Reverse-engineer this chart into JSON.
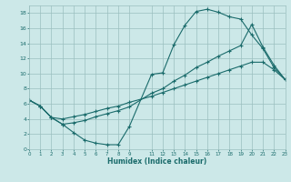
{
  "xlabel": "Humidex (Indice chaleur)",
  "bg_color": "#cce8e8",
  "grid_color": "#9bbfbf",
  "line_color": "#1a6b6b",
  "xlim": [
    0,
    23
  ],
  "ylim": [
    0,
    19
  ],
  "xticks": [
    0,
    1,
    2,
    3,
    4,
    5,
    6,
    7,
    8,
    9,
    11,
    12,
    13,
    14,
    15,
    16,
    17,
    18,
    19,
    20,
    21,
    22,
    23
  ],
  "yticks": [
    0,
    2,
    4,
    6,
    8,
    10,
    12,
    14,
    16,
    18
  ],
  "curve1_x": [
    0,
    1,
    2,
    3,
    4,
    5,
    6,
    7,
    8,
    9,
    11,
    12,
    13,
    14,
    15,
    16,
    17,
    18,
    19,
    20,
    21,
    22,
    23
  ],
  "curve1_y": [
    6.5,
    5.7,
    4.2,
    3.3,
    2.2,
    1.2,
    0.8,
    0.6,
    0.6,
    3.0,
    9.9,
    10.1,
    13.8,
    16.4,
    18.2,
    18.5,
    18.1,
    17.5,
    17.2,
    15.1,
    13.3,
    10.8,
    9.2
  ],
  "curve2_x": [
    0,
    1,
    2,
    3,
    4,
    5,
    6,
    7,
    8,
    9,
    11,
    12,
    13,
    14,
    15,
    16,
    17,
    18,
    19,
    20,
    21,
    22,
    23
  ],
  "curve2_y": [
    6.5,
    5.7,
    4.2,
    3.3,
    3.5,
    3.8,
    4.3,
    4.7,
    5.1,
    5.6,
    7.4,
    8.0,
    9.0,
    9.8,
    10.8,
    11.5,
    12.3,
    13.0,
    13.7,
    16.5,
    13.5,
    11.1,
    9.2
  ],
  "curve3_x": [
    0,
    1,
    2,
    3,
    4,
    5,
    6,
    7,
    8,
    9,
    11,
    12,
    13,
    14,
    15,
    16,
    17,
    18,
    19,
    20,
    21,
    22,
    23
  ],
  "curve3_y": [
    6.5,
    5.7,
    4.2,
    4.0,
    4.3,
    4.6,
    5.0,
    5.4,
    5.7,
    6.2,
    7.0,
    7.5,
    8.0,
    8.5,
    9.0,
    9.5,
    10.0,
    10.5,
    11.0,
    11.5,
    11.5,
    10.5,
    9.2
  ]
}
